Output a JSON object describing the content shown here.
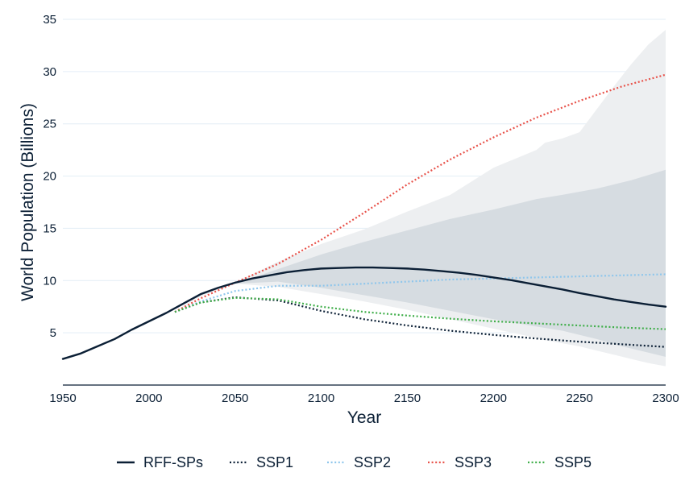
{
  "chart_data": {
    "type": "line",
    "title": "",
    "xlabel": "Year",
    "ylabel": "World Population (Billions)",
    "xlim": [
      1950,
      2300
    ],
    "ylim": [
      0,
      35
    ],
    "x_ticks": [
      1950,
      2000,
      2050,
      2100,
      2150,
      2200,
      2250,
      2300
    ],
    "y_ticks": [
      5,
      10,
      15,
      20,
      25,
      30,
      35
    ],
    "grid": "horizontal",
    "legend_position": "bottom",
    "colors": {
      "RFF-SPs": "#0b1f35",
      "SSP1": "#0b1f35",
      "SSP2": "#8ec6ec",
      "SSP3": "#e8524a",
      "SSP5": "#3fae49",
      "band_outer": "#edeff1",
      "band_inner": "#d6dce1",
      "grid": "#e3eef6"
    },
    "series": [
      {
        "name": "RFF-SPs",
        "style": "solid",
        "x": [
          1950,
          1960,
          1970,
          1980,
          1990,
          2000,
          2010,
          2020,
          2030,
          2040,
          2050,
          2060,
          2070,
          2080,
          2090,
          2100,
          2110,
          2120,
          2130,
          2140,
          2150,
          2160,
          2170,
          2180,
          2190,
          2200,
          2210,
          2220,
          2230,
          2240,
          2250,
          2260,
          2270,
          2280,
          2290,
          2300
        ],
        "values": [
          2.5,
          3.0,
          3.7,
          4.4,
          5.3,
          6.1,
          6.9,
          7.8,
          8.7,
          9.3,
          9.8,
          10.2,
          10.5,
          10.8,
          11.0,
          11.15,
          11.2,
          11.25,
          11.25,
          11.2,
          11.15,
          11.05,
          10.9,
          10.75,
          10.55,
          10.3,
          10.05,
          9.75,
          9.45,
          9.15,
          8.8,
          8.5,
          8.2,
          7.95,
          7.7,
          7.5
        ]
      },
      {
        "name": "SSP1",
        "style": "dotted",
        "x": [
          2015,
          2030,
          2050,
          2075,
          2100,
          2125,
          2150,
          2175,
          2200,
          2225,
          2250,
          2275,
          2300
        ],
        "values": [
          7.0,
          7.9,
          8.4,
          8.1,
          7.1,
          6.3,
          5.7,
          5.2,
          4.8,
          4.45,
          4.15,
          3.9,
          3.65
        ]
      },
      {
        "name": "SSP2",
        "style": "dotted",
        "x": [
          2015,
          2030,
          2050,
          2075,
          2100,
          2125,
          2150,
          2175,
          2200,
          2225,
          2250,
          2275,
          2300
        ],
        "values": [
          7.0,
          8.0,
          9.0,
          9.5,
          9.5,
          9.7,
          9.9,
          10.1,
          10.2,
          10.3,
          10.4,
          10.5,
          10.6
        ]
      },
      {
        "name": "SSP3",
        "style": "dotted",
        "x": [
          2015,
          2030,
          2050,
          2075,
          2100,
          2125,
          2150,
          2175,
          2200,
          2225,
          2250,
          2275,
          2300
        ],
        "values": [
          7.0,
          8.3,
          9.8,
          11.6,
          13.9,
          16.5,
          19.2,
          21.6,
          23.7,
          25.6,
          27.2,
          28.6,
          29.7
        ]
      },
      {
        "name": "SSP5",
        "style": "dotted",
        "x": [
          2015,
          2030,
          2050,
          2075,
          2100,
          2125,
          2150,
          2175,
          2200,
          2225,
          2250,
          2275,
          2300
        ],
        "values": [
          7.0,
          7.9,
          8.35,
          8.2,
          7.5,
          7.0,
          6.65,
          6.35,
          6.1,
          5.9,
          5.7,
          5.5,
          5.35
        ]
      }
    ],
    "bands": [
      {
        "x": [
          2015,
          2030,
          2050,
          2075,
          2100,
          2125,
          2150,
          2175,
          2200,
          2225,
          2230,
          2240,
          2250,
          2260,
          2270,
          2280,
          2290,
          2300
        ],
        "upper": [
          7.0,
          8.7,
          9.8,
          11.8,
          13.5,
          14.9,
          16.6,
          18.2,
          20.8,
          22.5,
          23.2,
          23.6,
          24.2,
          26.4,
          28.6,
          30.7,
          32.6,
          34.0
        ],
        "lower": [
          7.0,
          8.5,
          9.7,
          9.4,
          8.7,
          8.0,
          7.2,
          6.3,
          5.4,
          4.5,
          4.3,
          4.0,
          3.7,
          3.3,
          2.9,
          2.5,
          2.1,
          1.8
        ]
      },
      {
        "x": [
          2015,
          2030,
          2050,
          2075,
          2100,
          2125,
          2150,
          2175,
          2200,
          2225,
          2240,
          2250,
          2260,
          2270,
          2280,
          2290,
          2300
        ],
        "upper": [
          7.0,
          8.6,
          9.7,
          11.1,
          12.5,
          13.7,
          14.8,
          15.9,
          16.8,
          17.8,
          18.2,
          18.5,
          18.8,
          19.2,
          19.6,
          20.1,
          20.6
        ],
        "lower": [
          7.0,
          8.6,
          9.7,
          9.9,
          9.3,
          8.6,
          7.9,
          7.1,
          6.3,
          5.6,
          5.2,
          4.8,
          4.4,
          3.9,
          3.5,
          3.1,
          2.7
        ]
      }
    ]
  }
}
